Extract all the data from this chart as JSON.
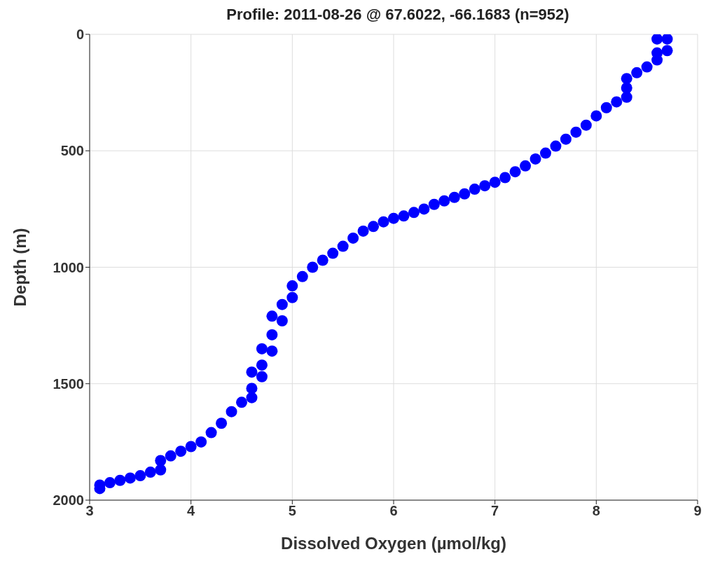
{
  "chart_data": {
    "type": "scatter",
    "title": "Profile: 2011-08-26 @ 67.6022, -66.1683 (n=952)",
    "xlabel": "Dissolved Oxygen (µmol/kg)",
    "ylabel": "Depth (m)",
    "x": [
      8.7,
      8.6,
      8.7,
      8.6,
      8.6,
      8.5,
      8.4,
      8.3,
      8.3,
      8.3,
      8.2,
      8.1,
      8.0,
      7.9,
      7.8,
      7.7,
      7.6,
      7.5,
      7.4,
      7.3,
      7.2,
      7.1,
      7.0,
      6.9,
      6.8,
      6.7,
      6.6,
      6.5,
      6.4,
      6.3,
      6.2,
      6.1,
      6.0,
      5.9,
      5.8,
      5.7,
      5.6,
      5.5,
      5.4,
      5.3,
      5.2,
      5.1,
      5.0,
      5.0,
      4.9,
      4.9,
      4.8,
      4.8,
      4.8,
      4.7,
      4.7,
      4.7,
      4.6,
      4.6,
      4.6,
      4.5,
      4.4,
      4.3,
      4.2,
      4.1,
      4.0,
      3.9,
      3.8,
      3.7,
      3.7,
      3.6,
      3.5,
      3.4,
      3.3,
      3.2,
      3.1,
      3.1
    ],
    "series": [
      {
        "color": "#0000ff",
        "values": [
          20,
          20,
          70,
          80,
          110,
          140,
          165,
          190,
          230,
          270,
          290,
          315,
          350,
          390,
          420,
          450,
          480,
          510,
          535,
          565,
          590,
          615,
          635,
          650,
          665,
          685,
          700,
          715,
          730,
          750,
          765,
          780,
          790,
          805,
          825,
          845,
          875,
          910,
          940,
          970,
          1000,
          1040,
          1080,
          1130,
          1160,
          1230,
          1210,
          1290,
          1360,
          1350,
          1420,
          1470,
          1450,
          1520,
          1560,
          1580,
          1620,
          1670,
          1710,
          1750,
          1770,
          1790,
          1810,
          1830,
          1870,
          1880,
          1895,
          1905,
          1915,
          1925,
          1935,
          1950
        ]
      }
    ],
    "xlim": [
      3,
      9
    ],
    "xticks": [
      3,
      4,
      5,
      6,
      7,
      8,
      9
    ],
    "ylim": [
      2000,
      0
    ],
    "yticks": [
      0,
      500,
      1000,
      1500,
      2000
    ],
    "grid": true,
    "marker": "circle"
  }
}
